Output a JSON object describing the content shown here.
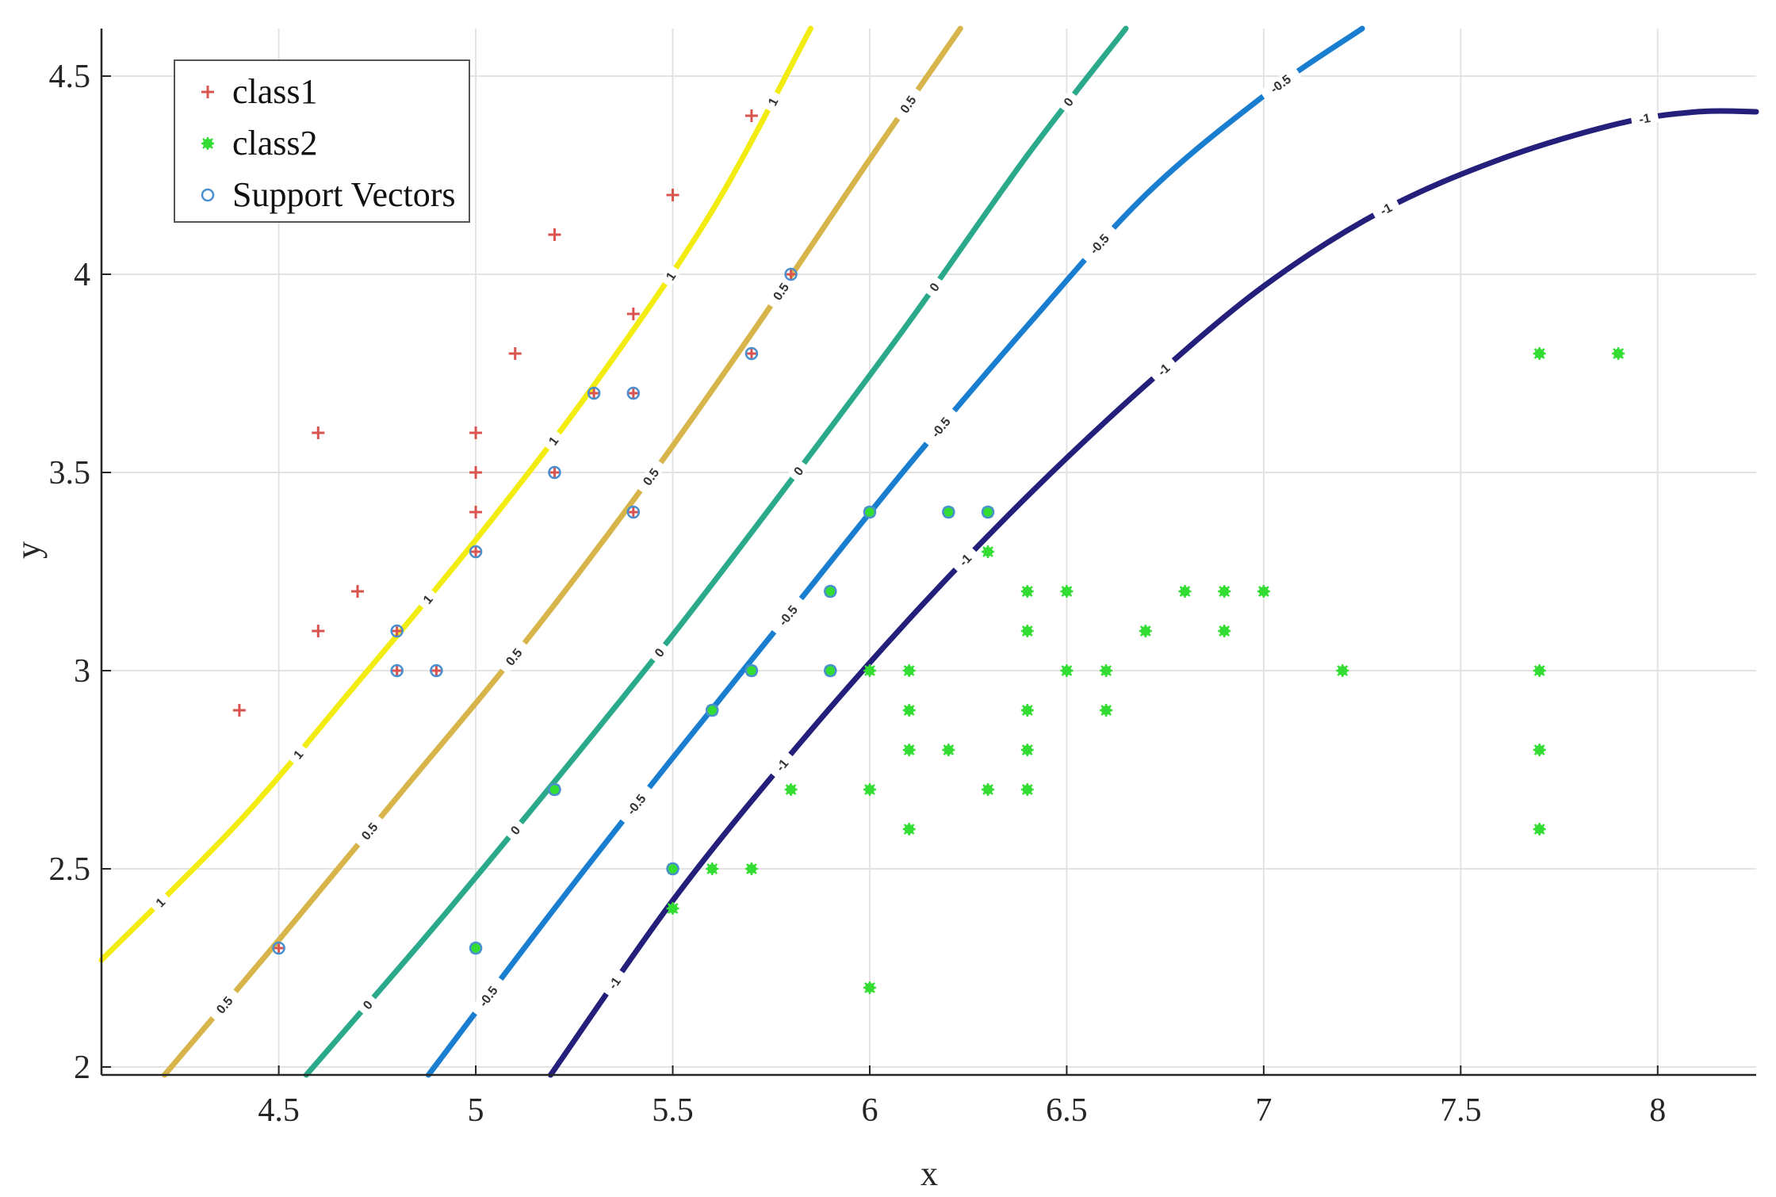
{
  "chart_data": {
    "type": "scatter",
    "title": "",
    "xlabel": "x",
    "ylabel": "y",
    "xlim": [
      4.05,
      8.25
    ],
    "ylim": [
      1.98,
      4.62
    ],
    "xticks": [
      4.5,
      5,
      5.5,
      6,
      6.5,
      7,
      7.5,
      8
    ],
    "yticks": [
      2,
      2.5,
      3,
      3.5,
      4,
      4.5
    ],
    "xtick_labels": [
      "4.5",
      "5",
      "5.5",
      "6",
      "6.5",
      "7",
      "7.5",
      "8"
    ],
    "ytick_labels": [
      "2",
      "2.5",
      "3",
      "3.5",
      "4",
      "4.5"
    ],
    "grid": true,
    "legend_position": "top-left",
    "series": [
      {
        "name": "class1",
        "marker": "+",
        "color": "#d9534f",
        "points": [
          [
            4.4,
            2.9
          ],
          [
            4.5,
            2.3
          ],
          [
            4.6,
            3.1
          ],
          [
            4.6,
            3.6
          ],
          [
            4.7,
            3.2
          ],
          [
            4.8,
            3.0
          ],
          [
            4.8,
            3.1
          ],
          [
            4.9,
            3.0
          ],
          [
            5.0,
            3.3
          ],
          [
            5.0,
            3.4
          ],
          [
            5.0,
            3.5
          ],
          [
            5.0,
            3.6
          ],
          [
            5.1,
            3.8
          ],
          [
            5.2,
            3.5
          ],
          [
            5.2,
            4.1
          ],
          [
            5.3,
            3.7
          ],
          [
            5.4,
            3.4
          ],
          [
            5.4,
            3.7
          ],
          [
            5.4,
            3.9
          ],
          [
            5.5,
            4.2
          ],
          [
            5.7,
            3.8
          ],
          [
            5.7,
            4.4
          ],
          [
            5.8,
            4.0
          ]
        ]
      },
      {
        "name": "class2",
        "marker": "*",
        "color": "#33dd33",
        "points": [
          [
            5.0,
            2.3
          ],
          [
            5.2,
            2.7
          ],
          [
            5.5,
            2.4
          ],
          [
            5.5,
            2.5
          ],
          [
            5.6,
            2.5
          ],
          [
            5.6,
            2.9
          ],
          [
            5.7,
            2.5
          ],
          [
            5.7,
            3.0
          ],
          [
            5.8,
            2.7
          ],
          [
            5.9,
            3.0
          ],
          [
            5.9,
            3.2
          ],
          [
            6.0,
            2.2
          ],
          [
            6.0,
            2.7
          ],
          [
            6.0,
            3.0
          ],
          [
            6.0,
            3.4
          ],
          [
            6.1,
            2.6
          ],
          [
            6.1,
            2.8
          ],
          [
            6.1,
            2.9
          ],
          [
            6.1,
            3.0
          ],
          [
            6.2,
            2.8
          ],
          [
            6.2,
            3.4
          ],
          [
            6.3,
            2.7
          ],
          [
            6.3,
            3.3
          ],
          [
            6.3,
            3.4
          ],
          [
            6.4,
            2.7
          ],
          [
            6.4,
            2.8
          ],
          [
            6.4,
            2.9
          ],
          [
            6.4,
            3.1
          ],
          [
            6.4,
            3.2
          ],
          [
            6.5,
            3.0
          ],
          [
            6.5,
            3.2
          ],
          [
            6.6,
            2.9
          ],
          [
            6.6,
            3.0
          ],
          [
            6.7,
            3.1
          ],
          [
            6.8,
            3.2
          ],
          [
            6.9,
            3.1
          ],
          [
            6.9,
            3.2
          ],
          [
            7.0,
            3.2
          ],
          [
            7.2,
            3.0
          ],
          [
            7.7,
            2.6
          ],
          [
            7.7,
            2.8
          ],
          [
            7.7,
            3.0
          ],
          [
            7.7,
            3.8
          ],
          [
            7.9,
            3.8
          ]
        ]
      },
      {
        "name": "Support Vectors",
        "marker": "o",
        "color": "#4a8fd0",
        "points": [
          [
            4.5,
            2.3
          ],
          [
            4.8,
            3.0
          ],
          [
            4.8,
            3.1
          ],
          [
            4.9,
            3.0
          ],
          [
            5.0,
            3.3
          ],
          [
            5.2,
            3.5
          ],
          [
            5.3,
            3.7
          ],
          [
            5.4,
            3.4
          ],
          [
            5.4,
            3.7
          ],
          [
            5.7,
            3.8
          ],
          [
            5.8,
            4.0
          ],
          [
            5.2,
            2.7
          ],
          [
            5.5,
            2.5
          ],
          [
            5.6,
            2.9
          ],
          [
            5.7,
            3.0
          ],
          [
            5.9,
            3.0
          ],
          [
            5.9,
            3.2
          ],
          [
            6.0,
            3.4
          ],
          [
            6.2,
            3.4
          ],
          [
            6.3,
            3.4
          ],
          [
            5.0,
            2.3
          ]
        ]
      }
    ],
    "contours": [
      {
        "level": "1",
        "color": "#f2ec10",
        "points": [
          [
            4.05,
            2.27
          ],
          [
            4.4,
            2.62
          ],
          [
            4.7,
            2.97
          ],
          [
            5.0,
            3.33
          ],
          [
            5.3,
            3.72
          ],
          [
            5.6,
            4.16
          ],
          [
            5.85,
            4.62
          ]
        ]
      },
      {
        "level": "0.5",
        "color": "#d8b54a",
        "points": [
          [
            4.21,
            1.98
          ],
          [
            4.5,
            2.32
          ],
          [
            4.8,
            2.68
          ],
          [
            5.1,
            3.04
          ],
          [
            5.4,
            3.43
          ],
          [
            5.7,
            3.85
          ],
          [
            6.0,
            4.29
          ],
          [
            6.23,
            4.62
          ]
        ]
      },
      {
        "level": "0",
        "color": "#2aaa8a",
        "points": [
          [
            4.57,
            1.98
          ],
          [
            4.9,
            2.36
          ],
          [
            5.2,
            2.72
          ],
          [
            5.5,
            3.09
          ],
          [
            5.8,
            3.48
          ],
          [
            6.1,
            3.88
          ],
          [
            6.4,
            4.3
          ],
          [
            6.65,
            4.62
          ]
        ]
      },
      {
        "level": "-0.5",
        "color": "#1a7ed0",
        "points": [
          [
            4.88,
            1.98
          ],
          [
            5.2,
            2.4
          ],
          [
            5.5,
            2.78
          ],
          [
            5.8,
            3.15
          ],
          [
            6.1,
            3.52
          ],
          [
            6.4,
            3.87
          ],
          [
            6.7,
            4.2
          ],
          [
            7.0,
            4.45
          ],
          [
            7.25,
            4.62
          ]
        ]
      },
      {
        "level": "-1",
        "color": "#231f7a",
        "points": [
          [
            5.19,
            1.98
          ],
          [
            5.5,
            2.42
          ],
          [
            5.8,
            2.79
          ],
          [
            6.1,
            3.13
          ],
          [
            6.4,
            3.44
          ],
          [
            6.7,
            3.72
          ],
          [
            7.0,
            3.97
          ],
          [
            7.3,
            4.16
          ],
          [
            7.6,
            4.29
          ],
          [
            7.9,
            4.38
          ],
          [
            8.1,
            4.41
          ],
          [
            8.25,
            4.41
          ]
        ]
      }
    ]
  }
}
